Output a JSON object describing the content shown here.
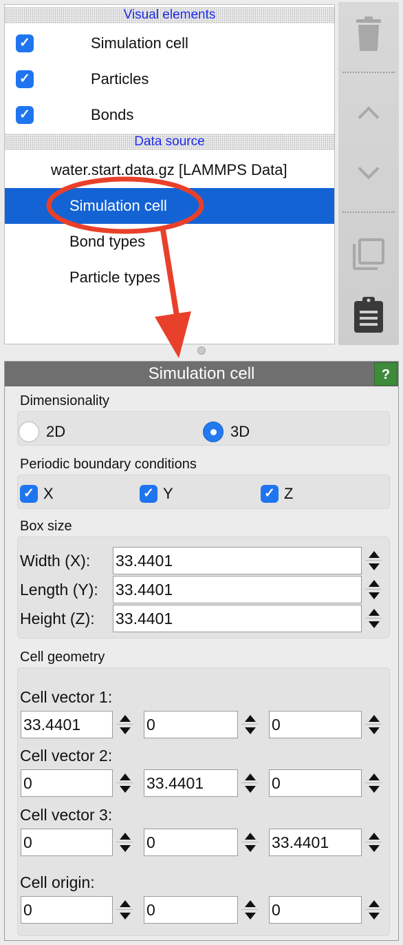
{
  "pipeline": {
    "visual_header": "Visual elements",
    "visual_items": [
      {
        "label": "Simulation cell",
        "checked": true
      },
      {
        "label": "Particles",
        "checked": true
      },
      {
        "label": "Bonds",
        "checked": true
      }
    ],
    "data_header": "Data source",
    "source_label": "water.start.data.gz [LAMMPS Data]",
    "data_items": [
      {
        "label": "Simulation cell",
        "selected": true
      },
      {
        "label": "Bond types",
        "selected": false
      },
      {
        "label": "Particle types",
        "selected": false
      }
    ]
  },
  "toolbar": {
    "icons": [
      "trash-icon",
      "move-up-icon",
      "move-down-icon",
      "duplicate-icon",
      "clipboard-icon"
    ]
  },
  "panel": {
    "title": "Simulation cell",
    "help_label": "?",
    "dimensionality": {
      "label": "Dimensionality",
      "options": [
        {
          "label": "2D",
          "checked": false
        },
        {
          "label": "3D",
          "checked": true
        }
      ]
    },
    "pbc": {
      "label": "Periodic boundary conditions",
      "options": [
        {
          "label": "X",
          "checked": true
        },
        {
          "label": "Y",
          "checked": true
        },
        {
          "label": "Z",
          "checked": true
        }
      ]
    },
    "box_size": {
      "label": "Box size",
      "fields": [
        {
          "label": "Width (X):",
          "value": "33.4401"
        },
        {
          "label": "Length (Y):",
          "value": "33.4401"
        },
        {
          "label": "Height (Z):",
          "value": "33.4401"
        }
      ]
    },
    "cell_geometry": {
      "label": "Cell geometry",
      "vectors": [
        {
          "label": "Cell vector 1:",
          "values": [
            "33.4401",
            "0",
            "0"
          ]
        },
        {
          "label": "Cell vector 2:",
          "values": [
            "0",
            "33.4401",
            "0"
          ]
        },
        {
          "label": "Cell vector 3:",
          "values": [
            "0",
            "0",
            "33.4401"
          ]
        },
        {
          "label": "Cell origin:",
          "values": [
            "0",
            "0",
            "0"
          ]
        }
      ]
    }
  },
  "colors": {
    "selection": "#1463d4",
    "annotation": "#e8402a",
    "header_text": "#1a28e6",
    "help_button": "#3f8b3c"
  }
}
